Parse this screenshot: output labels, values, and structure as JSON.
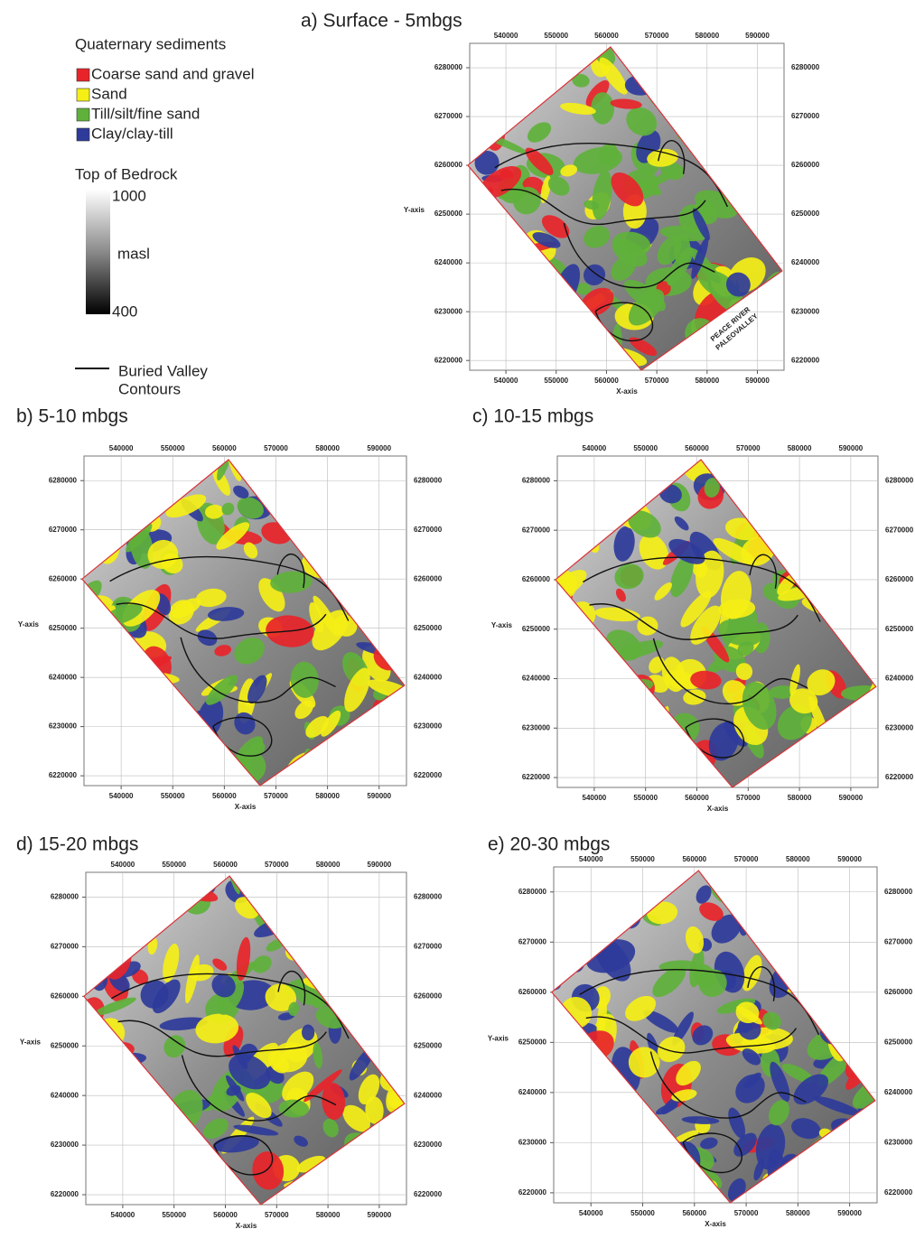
{
  "legend": {
    "title": "Quaternary sediments",
    "items": [
      {
        "label": "Coarse sand and gravel",
        "color": "#e8242a"
      },
      {
        "label": "Sand",
        "color": "#f5ef16"
      },
      {
        "label": "Till/silt/fine sand",
        "color": "#5fb13b"
      },
      {
        "label": "Clay/clay-till",
        "color": "#2e3b9a"
      }
    ],
    "bedrock": {
      "title": "Top of Bedrock",
      "max": 1000,
      "unit": "masl",
      "min": 400
    },
    "contour": [
      "Buried Valley",
      "Contours"
    ]
  },
  "panels": [
    {
      "title": "a) Surface - 5mbgs",
      "xlabel": "X-axis",
      "ylabel": "Y-axis",
      "xlim": [
        532800,
        595300
      ],
      "ylim": [
        6218000,
        6285000
      ],
      "xticks": [
        540000,
        550000,
        560000,
        570000,
        580000,
        590000
      ],
      "yticks": [
        6220000,
        6230000,
        6240000,
        6250000,
        6260000,
        6270000,
        6280000
      ],
      "annotation": [
        "PEACE RIVER",
        "PALEOVALLEY"
      ]
    },
    {
      "title": "b) 5-10 mbgs",
      "xlabel": "X-axis",
      "ylabel": "Y-axis",
      "xlim": [
        532800,
        595300
      ],
      "ylim": [
        6218000,
        6285000
      ],
      "xticks": [
        540000,
        550000,
        560000,
        570000,
        580000,
        590000
      ],
      "yticks": [
        6220000,
        6230000,
        6240000,
        6250000,
        6260000,
        6270000,
        6280000
      ]
    },
    {
      "title": "c) 10-15 mbgs",
      "xlabel": "X-axis",
      "ylabel": "Y-axis",
      "xlim": [
        532800,
        595300
      ],
      "ylim": [
        6218000,
        6285000
      ],
      "xticks": [
        540000,
        550000,
        560000,
        570000,
        580000,
        590000
      ],
      "yticks": [
        6220000,
        6230000,
        6240000,
        6250000,
        6260000,
        6270000,
        6280000
      ]
    },
    {
      "title": "d) 15-20 mbgs",
      "xlabel": "X-axis",
      "ylabel": "Y-axis",
      "xlim": [
        532800,
        595300
      ],
      "ylim": [
        6218000,
        6285000
      ],
      "xticks": [
        540000,
        550000,
        560000,
        570000,
        580000,
        590000
      ],
      "yticks": [
        6220000,
        6230000,
        6240000,
        6250000,
        6260000,
        6270000,
        6280000
      ]
    },
    {
      "title": "e) 20-30 mbgs",
      "xlabel": "X-axis",
      "ylabel": "Y-axis",
      "xlim": [
        532800,
        595300
      ],
      "ylim": [
        6218000,
        6285000
      ],
      "xticks": [
        540000,
        550000,
        560000,
        570000,
        580000,
        590000
      ],
      "yticks": [
        6220000,
        6230000,
        6240000,
        6250000,
        6260000,
        6270000,
        6280000
      ]
    }
  ]
}
